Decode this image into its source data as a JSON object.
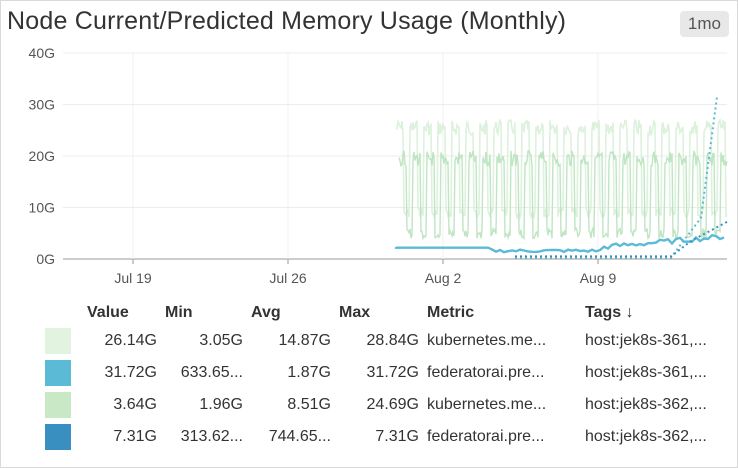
{
  "widget": {
    "title": "Node Current/Predicted Memory Usage (Monthly)",
    "time_badge": "1mo"
  },
  "chart_data": {
    "type": "line",
    "ylim": [
      0,
      40
    ],
    "y_ticks": [
      "40G",
      "30G",
      "20G",
      "10G",
      "0G"
    ],
    "x_ticks": [
      "Jul 19",
      "Jul 26",
      "Aug 2",
      "Aug 9"
    ],
    "series": [
      {
        "color": "#d9efd9",
        "style": "solid"
      },
      {
        "color": "#5bbad5",
        "style": "dotted"
      },
      {
        "color": "#b8e2bd",
        "style": "solid"
      },
      {
        "color": "#3a8fc1",
        "style": "dotted"
      }
    ]
  },
  "legend": {
    "headers": {
      "value": "Value",
      "min": "Min",
      "avg": "Avg",
      "max": "Max",
      "metric": "Metric",
      "tags": "Tags ↓"
    },
    "rows": [
      {
        "color": "#e2f3df",
        "value": "26.14G",
        "min": "3.05G",
        "avg": "14.87G",
        "max": "28.84G",
        "metric": "kubernetes.me...",
        "tags": "host:jek8s-361,..."
      },
      {
        "color": "#5bbad5",
        "value": "31.72G",
        "min": "633.65...",
        "avg": "1.87G",
        "max": "31.72G",
        "metric": "federatorai.pre...",
        "tags": "host:jek8s-361,..."
      },
      {
        "color": "#c8e8c6",
        "value": "3.64G",
        "min": "1.96G",
        "avg": "8.51G",
        "max": "24.69G",
        "metric": "kubernetes.me...",
        "tags": "host:jek8s-362,..."
      },
      {
        "color": "#3a8fc1",
        "value": "7.31G",
        "min": "313.62...",
        "avg": "744.65...",
        "max": "7.31G",
        "metric": "federatorai.pre...",
        "tags": "host:jek8s-362,..."
      }
    ]
  }
}
